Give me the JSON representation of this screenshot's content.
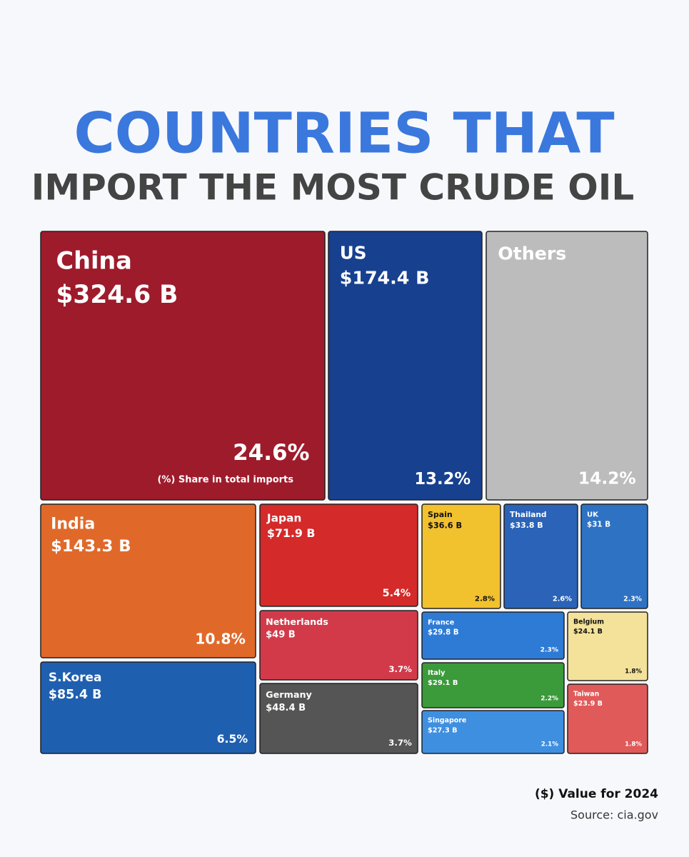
{
  "chart_data": {
    "type": "treemap",
    "title": "COUNTRIES THAT",
    "subtitle": "IMPORT THE MOST CRUDE OIL",
    "annotation": "(%) Share in total imports",
    "footnote": "($) Value for 2024",
    "source": "Source: cia.gov",
    "categories": [
      "China",
      "US",
      "Others",
      "India",
      "Japan",
      "Spain",
      "Thailand",
      "UK",
      "Netherlands",
      "France",
      "Belgium",
      "S.Korea",
      "Italy",
      "Germany",
      "Taiwan",
      "Singapore"
    ],
    "values": [
      324.6,
      174.4,
      null,
      143.3,
      71.9,
      36.6,
      33.8,
      31,
      49,
      29.8,
      24.1,
      85.4,
      29.1,
      48.4,
      23.9,
      27.3
    ],
    "value_labels": [
      "$324.6 B",
      "$174.4 B",
      null,
      "$143.3 B",
      "$71.9 B",
      "$36.6 B",
      "$33.8 B",
      "$31 B",
      "$49 B",
      "$29.8 B",
      "$24.1 B",
      "$85.4 B",
      "$29.1 B",
      "$48.4 B",
      "$23.9 B",
      "$27.3 B"
    ],
    "shares": [
      24.6,
      13.2,
      14.2,
      10.8,
      5.4,
      2.8,
      2.6,
      2.3,
      3.7,
      2.3,
      1.8,
      6.5,
      2.2,
      3.7,
      1.8,
      2.1
    ],
    "share_labels": [
      "24.6%",
      "13.2%",
      "14.2%",
      "10.8%",
      "5.4%",
      "2.8%",
      "2.6%",
      "2.3%",
      "3.7%",
      "2.3%",
      "1.8%",
      "6.5%",
      "2.2%",
      "3.7%",
      "1.8%",
      "2.1%"
    ],
    "colors": [
      "#9e1b2b",
      "#17408f",
      "#bcbcbc",
      "#e0692a",
      "#d42a2a",
      "#f2c12e",
      "#2a63b8",
      "#2e72c4",
      "#d23a4a",
      "#2e7bd6",
      "#f4e29a",
      "#1f5fb0",
      "#3b9a3a",
      "#555555",
      "#e05a5a",
      "#3f8fe0"
    ]
  }
}
